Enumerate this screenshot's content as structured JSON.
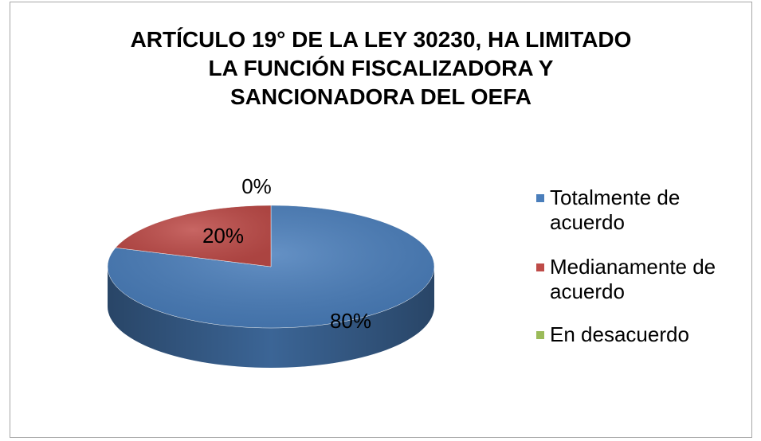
{
  "chart_data": {
    "type": "pie",
    "title": "ARTÍCULO 19° DE LA LEY 30230, HA LIMITADO\nLA FUNCIÓN FISCALIZADORA Y\nSANCIONADORA DEL OEFA",
    "categories": [
      "Totalmente de acuerdo",
      "Medianamente de acuerdo",
      "En desacuerdo"
    ],
    "values": [
      80,
      20,
      0
    ],
    "value_labels": [
      "80%",
      "20%",
      "0%"
    ],
    "colors": [
      "#4a7ebb",
      "#be4b48",
      "#9bbb59"
    ],
    "legend": "right"
  }
}
